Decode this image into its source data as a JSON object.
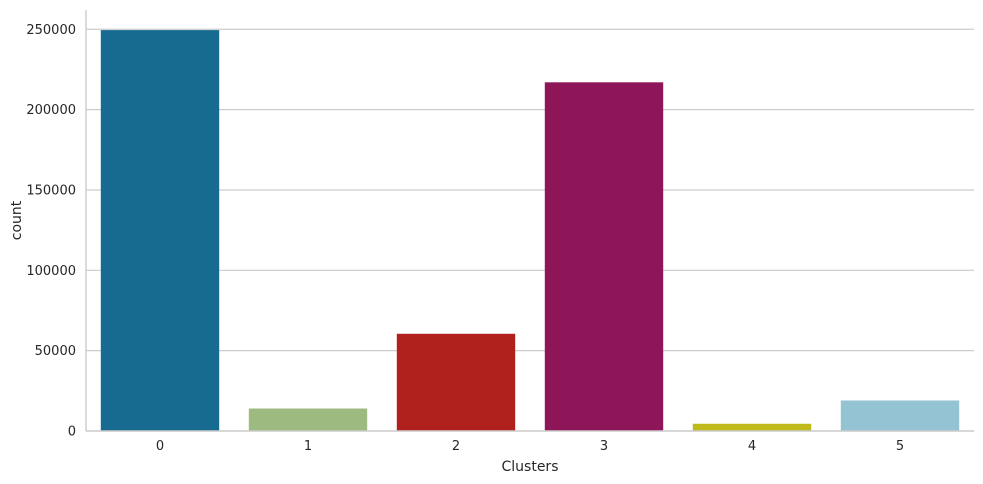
{
  "chart_data": {
    "type": "bar",
    "title": "",
    "xlabel": "Clusters",
    "ylabel": "count",
    "categories": [
      "0",
      "1",
      "2",
      "3",
      "4",
      "5"
    ],
    "values": [
      249500,
      14000,
      60500,
      217000,
      4500,
      19000
    ],
    "colors": [
      "#176b91",
      "#9dbb80",
      "#b0201c",
      "#8e1558",
      "#c0b91c",
      "#94c4d3"
    ],
    "ylim": [
      0,
      262000
    ],
    "yticks": [
      0,
      50000,
      100000,
      150000,
      200000,
      250000
    ],
    "ytick_labels": [
      "0",
      "50000",
      "100000",
      "150000",
      "200000",
      "250000"
    ],
    "grid": "horizontal",
    "spines": "left-bottom"
  }
}
